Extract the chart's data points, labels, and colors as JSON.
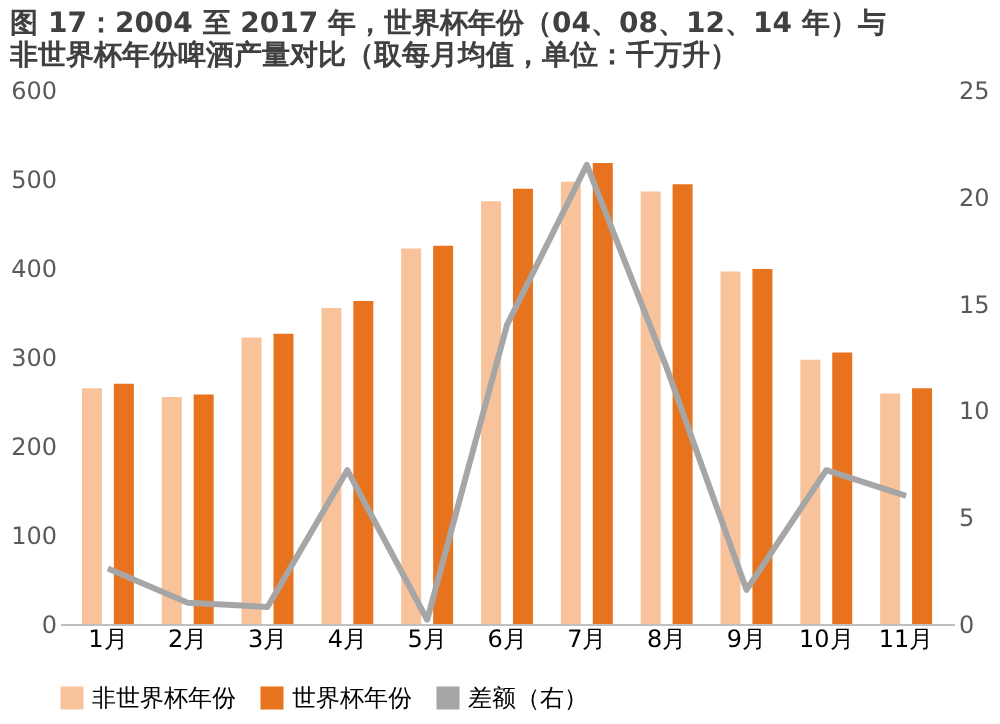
{
  "chart_data": {
    "type": "bar",
    "title": [
      "图 17：2004 至 2017 年，世界杯年份（04、08、12、14 年）与",
      "非世界杯年份啤酒产量对比（取每月均值，单位：千万升）"
    ],
    "categories": [
      "1月",
      "2月",
      "3月",
      "4月",
      "5月",
      "6月",
      "7月",
      "8月",
      "9月",
      "10月",
      "11月"
    ],
    "series": [
      {
        "name": "非世界杯年份",
        "color": "#f8c39b",
        "values": [
          265,
          255,
          322,
          355,
          422,
          475,
          497,
          486,
          396,
          297,
          259
        ]
      },
      {
        "name": "世界杯年份",
        "color": "#e8731f",
        "values": [
          270,
          258,
          326,
          363,
          425,
          489,
          518,
          494,
          399,
          305,
          265
        ]
      },
      {
        "name": "差额（右）",
        "color": "#a6a6a6",
        "type": "line",
        "axis": "y2",
        "values": [
          2.6,
          1.0,
          0.8,
          7.2,
          0.2,
          14,
          21.5,
          12,
          1.6,
          7.2,
          6.0
        ]
      }
    ],
    "ylim": [
      0,
      600
    ],
    "yticks": [
      0,
      100,
      200,
      300,
      400,
      500,
      600
    ],
    "y2lim": [
      0,
      25
    ],
    "y2ticks": [
      0,
      5,
      10,
      15,
      20,
      25
    ],
    "grid": false,
    "legend": "bottom",
    "marker": "none",
    "line_style": "solid"
  }
}
